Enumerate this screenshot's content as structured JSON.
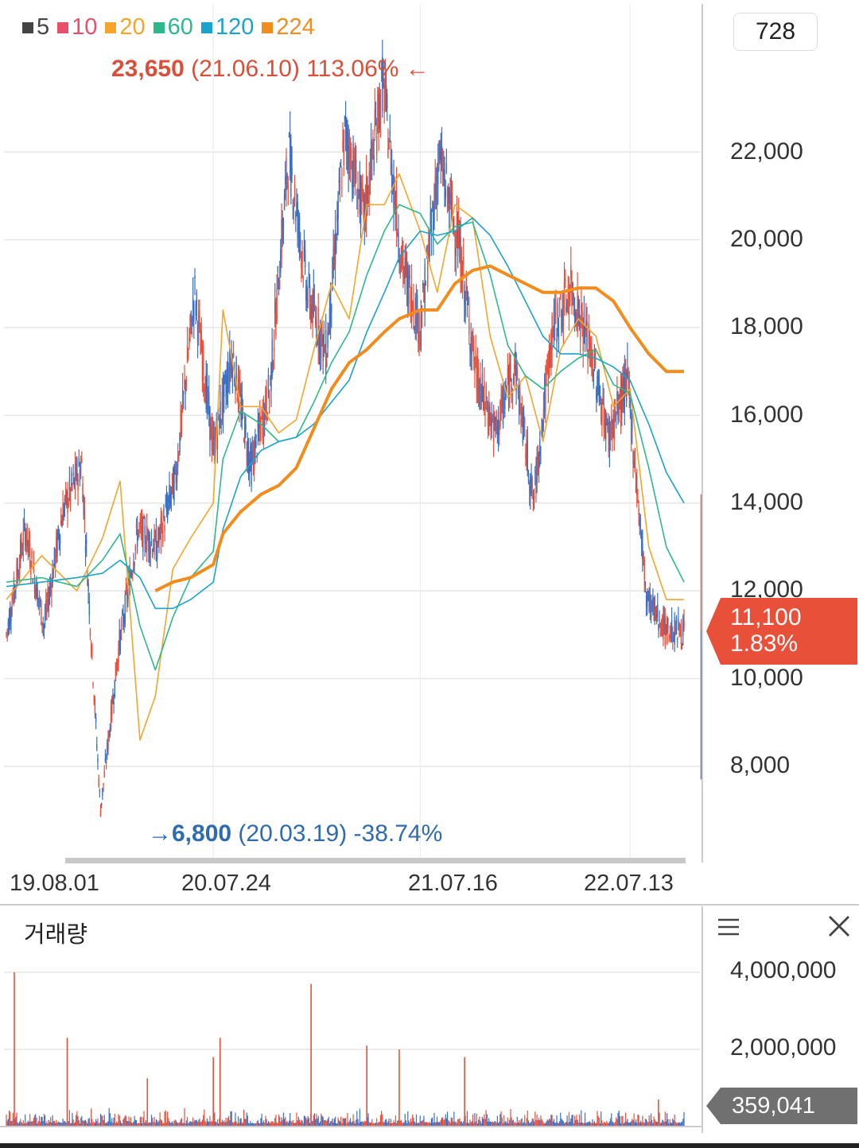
{
  "legend": [
    {
      "label": "5",
      "color": "#444444"
    },
    {
      "label": "10",
      "color": "#e8506a"
    },
    {
      "label": "20",
      "color": "#f4a52a"
    },
    {
      "label": "60",
      "color": "#2eb88a"
    },
    {
      "label": "120",
      "color": "#1aa3cc"
    },
    {
      "label": "224",
      "color": "#f28c1c"
    }
  ],
  "count": "728",
  "high": {
    "price": "23,650",
    "date": "(21.06.10)",
    "pct": "113.06%",
    "arrow": "←"
  },
  "low": {
    "arrow": "→",
    "price": "6,800",
    "date": "(20.03.19)",
    "pct": "-38.74%"
  },
  "current": {
    "price": "11,100",
    "pct": "1.83%"
  },
  "volume": {
    "title": "거래량",
    "current": "359,041"
  },
  "colors": {
    "up": "#e9503a",
    "down": "#3a6fc4",
    "ma224": "#f28c1c",
    "grid": "#e6e6e6"
  },
  "chart_data": [
    {
      "type": "line",
      "title": "",
      "x_ticks": [
        "19.08.01",
        "20.07.24",
        "21.07.16",
        "22.07.13"
      ],
      "y_ticks": [
        "8,000",
        "10,000",
        "12,000",
        "14,000",
        "16,000",
        "18,000",
        "20,000",
        "22,000"
      ],
      "ylim": [
        6000,
        24500
      ],
      "dates": [
        "19.08.01",
        "19.10.01",
        "19.12.01",
        "20.01.15",
        "20.02.15",
        "20.03.19",
        "20.04.15",
        "20.05.15",
        "20.06.15",
        "20.07.24",
        "20.08.10",
        "20.09.10",
        "20.10.15",
        "20.11.15",
        "20.12.15",
        "21.01.15",
        "21.02.15",
        "21.03.15",
        "21.04.15",
        "21.05.15",
        "21.06.10",
        "21.07.16",
        "21.08.15",
        "21.09.15",
        "21.10.15",
        "21.11.15",
        "21.12.15",
        "22.01.15",
        "22.02.15",
        "22.03.15",
        "22.04.15",
        "22.05.15",
        "22.06.15",
        "22.07.13",
        "22.08.15",
        "22.09.15",
        "22.10.15"
      ],
      "series": [
        {
          "name": "5",
          "values": [
            11000,
            13400,
            11200,
            13800,
            14900,
            7000,
            10800,
            13400,
            13000,
            14600,
            18800,
            15200,
            17400,
            14800,
            16600,
            22000,
            18800,
            17400,
            22500,
            20500,
            23650,
            19500,
            18000,
            21900,
            20000,
            16800,
            15600,
            17200,
            14000,
            17900,
            18900,
            17500,
            15500,
            16800,
            11900,
            11100,
            11100
          ]
        },
        {
          "name": "20",
          "values": [
            11800,
            12800,
            12000,
            13200,
            14500,
            8600,
            9600,
            12500,
            13200,
            14000,
            18400,
            16200,
            16200,
            15600,
            15900,
            17500,
            19000,
            18200,
            20800,
            20800,
            21500,
            20200,
            18800,
            20800,
            20500,
            17800,
            16400,
            16900,
            15400,
            17500,
            18200,
            17800,
            16200,
            16600,
            13000,
            11800,
            11800
          ]
        },
        {
          "name": "60",
          "values": [
            12200,
            12300,
            12100,
            12700,
            13300,
            11200,
            10200,
            11400,
            12300,
            12900,
            15000,
            16100,
            15800,
            15400,
            15500,
            16300,
            17200,
            17900,
            19200,
            20200,
            20800,
            20600,
            19900,
            20300,
            20400,
            19200,
            17600,
            16900,
            16600,
            17000,
            17300,
            17500,
            16700,
            16500,
            14800,
            13000,
            12200
          ]
        },
        {
          "name": "120",
          "values": [
            12100,
            12200,
            12300,
            12400,
            12700,
            12300,
            11600,
            11600,
            11800,
            12200,
            13400,
            14600,
            15200,
            15400,
            15500,
            15800,
            16300,
            16800,
            17900,
            18800,
            19600,
            20200,
            20100,
            20200,
            20500,
            20100,
            19400,
            18600,
            17800,
            17400,
            17400,
            17300,
            17100,
            16800,
            15800,
            14700,
            14000
          ]
        },
        {
          "name": "224",
          "values": [
            null,
            null,
            null,
            null,
            null,
            null,
            12000,
            12200,
            12300,
            12600,
            13300,
            13800,
            14200,
            14400,
            14800,
            15700,
            16600,
            17200,
            17500,
            17900,
            18200,
            18400,
            18400,
            19000,
            19300,
            19400,
            19200,
            19000,
            18800,
            18800,
            18900,
            18900,
            18600,
            18000,
            17400,
            17000,
            17000
          ]
        }
      ]
    },
    {
      "type": "bar",
      "title": "거래량",
      "y_ticks": [
        "2,000,000",
        "4,000,000"
      ],
      "ylim": [
        0,
        4200000
      ],
      "spikes": [
        {
          "date": "19.08.15",
          "value": 4000000
        },
        {
          "date": "19.11.15",
          "value": 2300000
        },
        {
          "date": "20.04.01",
          "value": 1250000
        },
        {
          "date": "20.07.24",
          "value": 1800000
        },
        {
          "date": "20.08.05",
          "value": 2300000
        },
        {
          "date": "21.01.10",
          "value": 3700000
        },
        {
          "date": "21.04.15",
          "value": 2100000
        },
        {
          "date": "21.06.10",
          "value": 2000000
        },
        {
          "date": "21.10.01",
          "value": 1800000
        },
        {
          "date": "22.09.01",
          "value": 700000
        }
      ],
      "latest": 359041
    }
  ]
}
